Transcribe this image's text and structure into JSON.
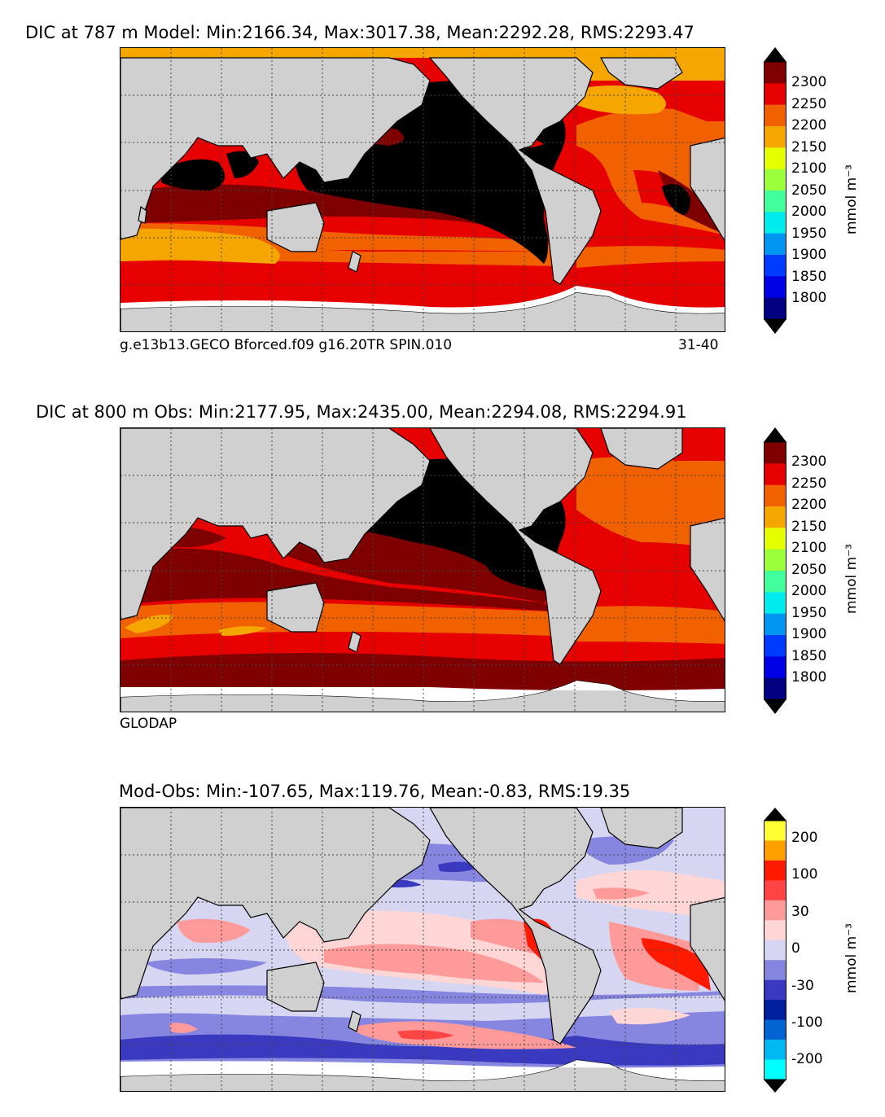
{
  "panels": [
    {
      "title": "DIC at 787 m Model: Min:2166.34, Max:3017.38, Mean:2292.28, RMS:2293.47",
      "footer_left": "g.e13b13.GECO Bforced.f09 g16.20TR SPIN.010",
      "footer_right": "31-40",
      "colorbar": {
        "ticks": [
          "2300",
          "2250",
          "2200",
          "2150",
          "2100",
          "2050",
          "2000",
          "1950",
          "1900",
          "1850",
          "1800"
        ],
        "unit": "mmol m⁻³",
        "colors": [
          "#7f0000",
          "#e60000",
          "#f26100",
          "#f6a600",
          "#e6ff00",
          "#9cff3c",
          "#40ff9c",
          "#00ecec",
          "#0096f2",
          "#003cff",
          "#0000e6",
          "#000080"
        ]
      }
    },
    {
      "title": "DIC at 800 m Obs: Min:2177.95, Max:2435.00, Mean:2294.08, RMS:2294.91",
      "footer_left": "GLODAP",
      "colorbar": {
        "ticks": [
          "2300",
          "2250",
          "2200",
          "2150",
          "2100",
          "2050",
          "2000",
          "1950",
          "1900",
          "1850",
          "1800"
        ],
        "unit": "mmol m⁻³",
        "colors": [
          "#7f0000",
          "#e60000",
          "#f26100",
          "#f6a600",
          "#e6ff00",
          "#9cff3c",
          "#40ff9c",
          "#00ecec",
          "#0096f2",
          "#003cff",
          "#0000e6",
          "#000080"
        ]
      }
    },
    {
      "title": "Mod-Obs: Min:-107.65, Max:119.76, Mean:-0.83, RMS:19.35",
      "colorbar": {
        "ticks": [
          "200",
          "100",
          "30",
          "0",
          "-30",
          "-100",
          "-200"
        ],
        "unit": "mmol m⁻³",
        "colors": [
          "#ffff33",
          "#ff9f00",
          "#ff1a00",
          "#ff4444",
          "#ff9a9a",
          "#ffd6d6",
          "#d6d6f2",
          "#8686e0",
          "#3a3ac0",
          "#0020a0",
          "#0064d2",
          "#00b8f2",
          "#00ffff"
        ]
      }
    }
  ],
  "colors": {
    "land": "#d0d0d0",
    "nodata": "#ffffff",
    "deep_black": "#000000"
  }
}
